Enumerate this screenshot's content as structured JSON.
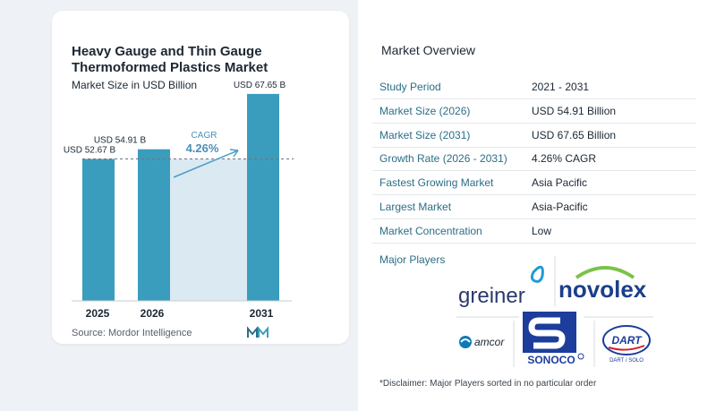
{
  "chart_data": {
    "type": "bar",
    "title": "Heavy Gauge and Thin Gauge Thermoformed Plastics Market",
    "subtitle": "Market Size in USD Billion",
    "categories": [
      "2025",
      "2026",
      "2031"
    ],
    "values": [
      52.67,
      54.91,
      67.65
    ],
    "data_labels": [
      "USD 52.67 B",
      "USD 54.91 B",
      "USD 67.65 B"
    ],
    "cagr_label": "CAGR",
    "cagr_value": "4.26%",
    "grid": false,
    "colors": {
      "bar": "#3a9dbd",
      "band": "#dbe9f2",
      "arrow": "#4a9fc4",
      "cagr_text": "#4a90b8"
    }
  },
  "source": "Source:  Mordor Intelligence",
  "overview": {
    "title": "Market Overview",
    "rows": [
      {
        "key": "Study Period",
        "value": "2021 - 2031"
      },
      {
        "key": "Market Size (2026)",
        "value": "USD 54.91 Billion"
      },
      {
        "key": "Market Size (2031)",
        "value": "USD 67.65 Billion"
      },
      {
        "key": "Growth Rate (2026 - 2031)",
        "value": "4.26% CAGR"
      },
      {
        "key": "Fastest Growing Market",
        "value": "Asia Pacific"
      },
      {
        "key": "Largest Market",
        "value": "Asia-Pacific"
      },
      {
        "key": "Market Concentration",
        "value": "Low"
      }
    ],
    "players_label": "Major Players",
    "players": {
      "greiner": "greiner",
      "novolex": "novolex",
      "amcor": "amcor",
      "sonoco": "SONOCO",
      "dart": "DART",
      "dart_sub": "DART / SOLO"
    },
    "disclaimer": "*Disclaimer: Major Players sorted in no particular order"
  }
}
